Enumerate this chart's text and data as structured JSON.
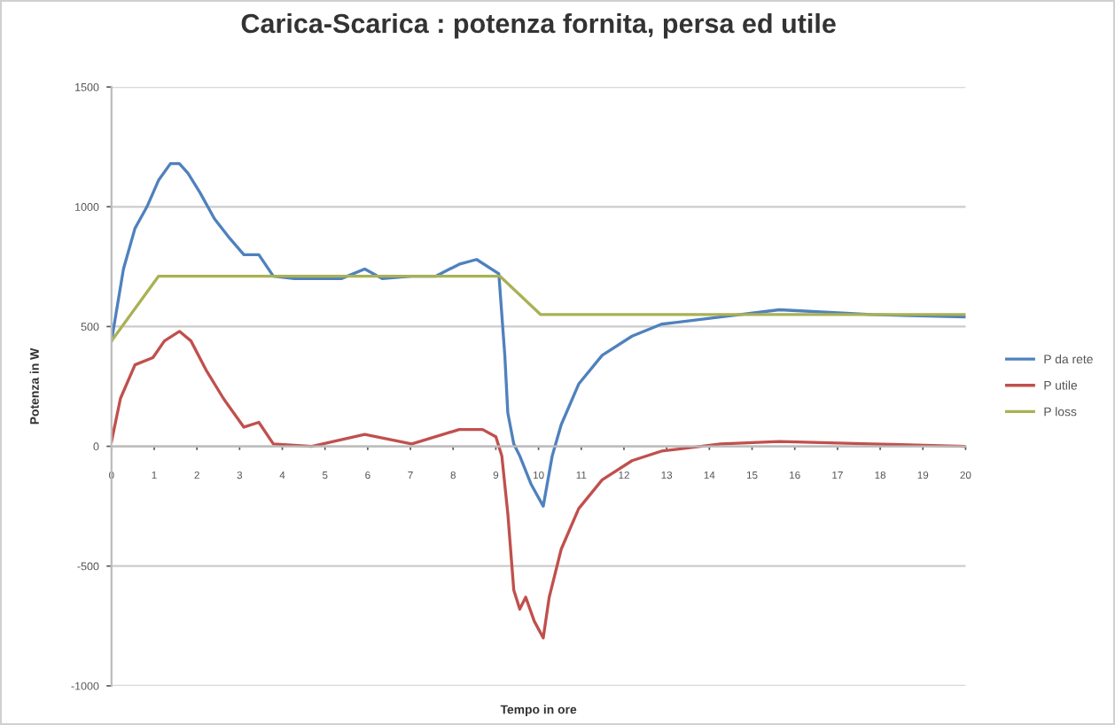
{
  "chart_data": {
    "type": "line",
    "title": "Carica-Scarica : potenza fornita, persa ed utile",
    "xlabel": "Tempo in ore",
    "ylabel": "Potenza in W",
    "xlim": [
      0,
      20
    ],
    "xticks": [
      0,
      1,
      2,
      3,
      4,
      5,
      6,
      7,
      8,
      9,
      10,
      11,
      12,
      13,
      14,
      15,
      16,
      17,
      18,
      19,
      20
    ],
    "ylim": [
      -1000,
      1500
    ],
    "yticks": [
      -1000,
      -500,
      0,
      500,
      1000,
      1500
    ],
    "grid": "y",
    "legend": "right",
    "marker": "none",
    "line_style": "solid",
    "series": [
      {
        "name": "P da rete",
        "color": "#4f81bd",
        "x": [
          0,
          0.28,
          0.55,
          0.83,
          1.1,
          1.38,
          1.59,
          1.79,
          2.07,
          2.41,
          2.76,
          3.1,
          3.45,
          3.79,
          4.28,
          4.83,
          5.38,
          5.93,
          6.34,
          7.03,
          7.59,
          8.14,
          8.55,
          9.07,
          9.21,
          9.28,
          9.42,
          9.56,
          9.83,
          10.11,
          10.32,
          10.53,
          10.94,
          11.49,
          12.19,
          12.88,
          14.26,
          15.64,
          17.79,
          20
        ],
        "values": [
          440,
          740,
          910,
          1000,
          1110,
          1180,
          1180,
          1140,
          1060,
          950,
          870,
          800,
          800,
          710,
          700,
          700,
          700,
          740,
          700,
          710,
          710,
          760,
          780,
          720,
          380,
          140,
          10,
          -40,
          -160,
          -250,
          -40,
          90,
          260,
          380,
          460,
          510,
          540,
          570,
          550,
          540
        ]
      },
      {
        "name": "P utile",
        "color": "#c0504d",
        "x": [
          0,
          0.21,
          0.55,
          0.97,
          1.24,
          1.59,
          1.86,
          2.21,
          2.62,
          3.1,
          3.45,
          3.79,
          4.69,
          5.93,
          7.03,
          8.14,
          8.69,
          9.0,
          9.14,
          9.28,
          9.42,
          9.56,
          9.7,
          9.9,
          10.11,
          10.25,
          10.53,
          10.94,
          11.49,
          12.19,
          12.88,
          14.26,
          15.64,
          17.79,
          20
        ],
        "values": [
          20,
          200,
          340,
          370,
          440,
          480,
          440,
          320,
          200,
          80,
          100,
          10,
          0,
          50,
          10,
          70,
          70,
          40,
          -40,
          -280,
          -600,
          -680,
          -630,
          -730,
          -800,
          -630,
          -430,
          -260,
          -140,
          -60,
          -20,
          10,
          20,
          10,
          0
        ]
      },
      {
        "name": "P loss",
        "color": "#a9b154",
        "x": [
          0,
          1.1,
          9.1,
          10.05,
          20
        ],
        "values": [
          440,
          710,
          710,
          550,
          550
        ]
      }
    ]
  }
}
